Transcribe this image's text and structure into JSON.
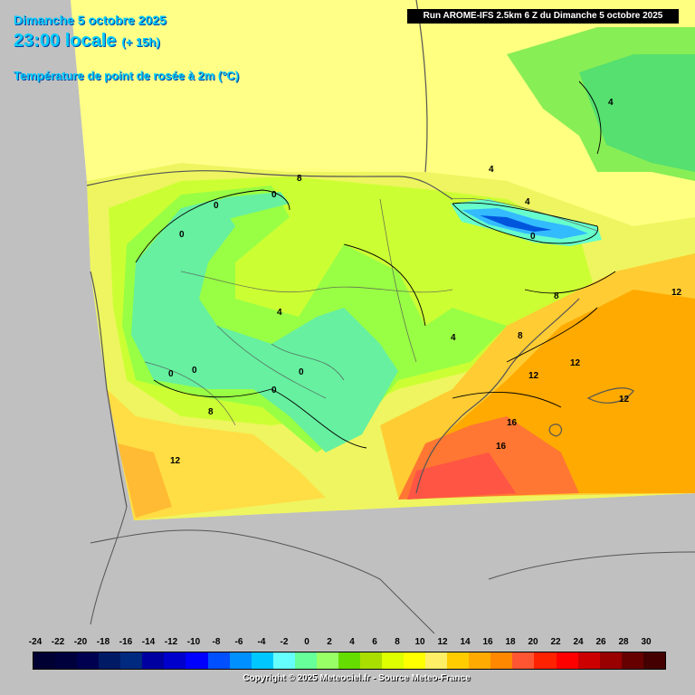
{
  "header": {
    "date_line": "Dimanche 5 octobre 2025",
    "time_line": "23:00 locale",
    "lead_time": "(+ 15h)",
    "variable": "Température de point de rosée à 2m (°C)",
    "run_info": "Run AROME-IFS 2.5km 6 Z du Dimanche 5 octobre 2025"
  },
  "map": {
    "region": "Northeast Spain / Pyrenees / Gulf of Lion",
    "contour_labels": [
      "0",
      "0",
      "0",
      "8",
      "0",
      "4",
      "0",
      "8",
      "4",
      "0",
      "4",
      "4",
      "8",
      "4",
      "12",
      "12",
      "0",
      "0",
      "12",
      "8",
      "12",
      "16",
      "12",
      "16"
    ]
  },
  "legend": {
    "ticks": [
      "-24",
      "-22",
      "-20",
      "-18",
      "-16",
      "-14",
      "-12",
      "-10",
      "-8",
      "-6",
      "-4",
      "-2",
      "0",
      "2",
      "4",
      "6",
      "8",
      "10",
      "12",
      "14",
      "16",
      "18",
      "20",
      "22",
      "24",
      "26",
      "28",
      "30"
    ],
    "colors": [
      "#000033",
      "#00003d",
      "#000050",
      "#001a66",
      "#002a80",
      "#0000a0",
      "#0000cc",
      "#0000ff",
      "#0050ff",
      "#0090ff",
      "#00c8ff",
      "#66ffff",
      "#66ff99",
      "#99ff66",
      "#66dd00",
      "#aadd00",
      "#ddff00",
      "#ffff00",
      "#ffee66",
      "#ffcc00",
      "#ffaa00",
      "#ff8800",
      "#ff5533",
      "#ff2200",
      "#ff0000",
      "#cc0000",
      "#990000",
      "#660000",
      "#440000"
    ]
  },
  "footer": {
    "copyright": "Copyright © 2025 Meteociel.fr - Source Meteo-France"
  }
}
